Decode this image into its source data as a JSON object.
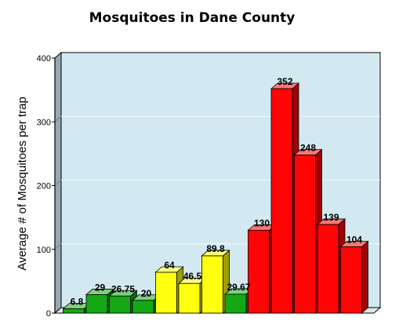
{
  "chart_data": {
    "type": "bar",
    "title": "Mosquitoes in Dane County",
    "ylabel": "Average # of Mosquitoes per trap",
    "xlabel": "",
    "ylim": [
      0,
      400
    ],
    "yticks": [
      "0",
      "100",
      "200",
      "300",
      "400"
    ],
    "grid": true,
    "legend": "none",
    "colors": {
      "plot_background": "#d2e9f1",
      "side_wall": "#96a9b0",
      "grid": "#f4fbfd",
      "green": "#14a814",
      "yellow": "#ffff10",
      "red": "#ff0505"
    },
    "bars": [
      {
        "value": 6.8,
        "label": "6.8",
        "color": "green"
      },
      {
        "value": 29,
        "label": "29",
        "color": "green"
      },
      {
        "value": 26.75,
        "label": "26.75",
        "color": "green"
      },
      {
        "value": 20,
        "label": "20",
        "color": "green"
      },
      {
        "value": 64,
        "label": "64",
        "color": "yellow"
      },
      {
        "value": 46.5,
        "label": "46.5",
        "color": "yellow"
      },
      {
        "value": 89.8,
        "label": "89.8",
        "color": "yellow"
      },
      {
        "value": 29.67,
        "label": "29.67",
        "color": "green"
      },
      {
        "value": 130,
        "label": "130",
        "color": "red"
      },
      {
        "value": 352,
        "label": "352",
        "color": "red"
      },
      {
        "value": 248,
        "label": "248",
        "color": "red"
      },
      {
        "value": 139,
        "label": "139",
        "color": "red"
      },
      {
        "value": 104,
        "label": "104",
        "color": "red"
      }
    ]
  }
}
